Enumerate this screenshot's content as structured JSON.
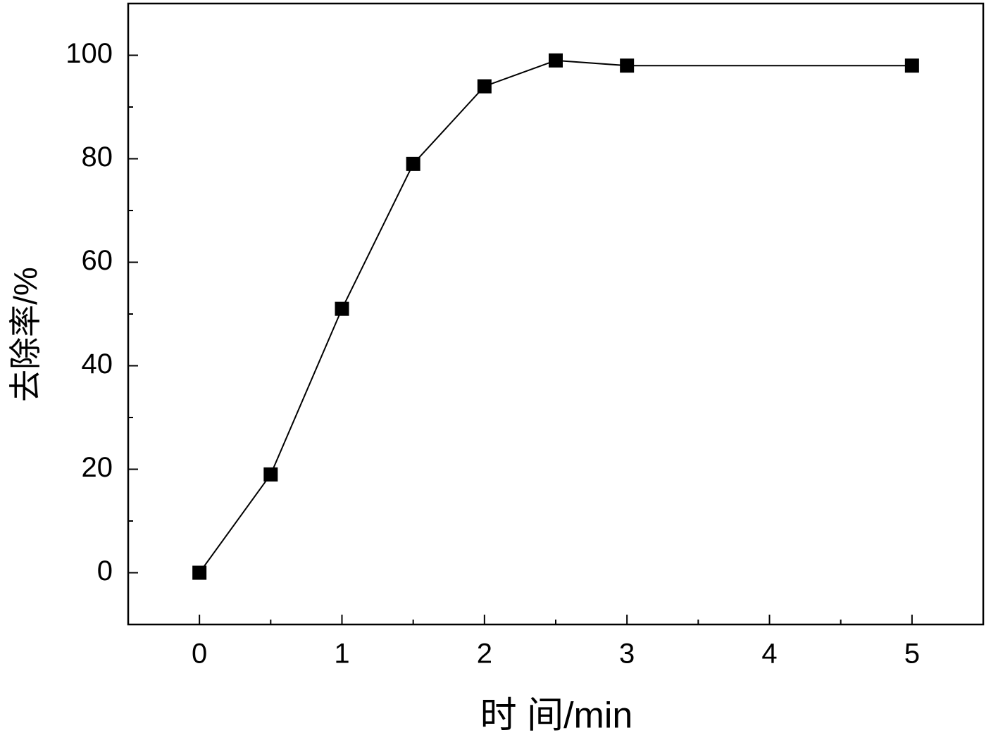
{
  "chart_data": {
    "type": "line",
    "xlabel": "时 间/min",
    "ylabel": "去除率/%",
    "x": [
      0,
      0.5,
      1,
      1.5,
      2,
      2.5,
      3,
      5
    ],
    "series": [
      {
        "color": "#000000",
        "values": [
          0,
          19,
          51,
          79,
          94,
          99,
          98,
          98
        ]
      }
    ],
    "xlim": [
      -0.5,
      5.5
    ],
    "ylim": [
      -10,
      110
    ],
    "xticks": [
      0,
      1,
      2,
      3,
      4,
      5
    ],
    "yticks": [
      0,
      20,
      40,
      60,
      80,
      100
    ],
    "marker": "square"
  }
}
